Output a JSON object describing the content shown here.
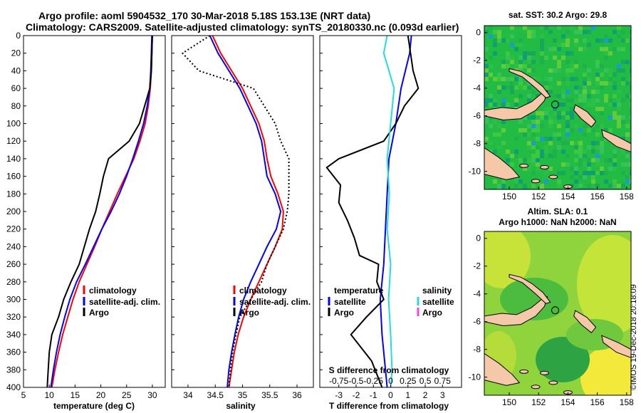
{
  "header": {
    "line1": "Argo profile: aoml 5904532_170 30-Mar-2018 5.18S 153.13E (NRT data)",
    "line2": "Climatology: CARS2009. Satellite-adjusted climatology: synTS_20180330.nc (0.093d earlier)"
  },
  "watermark": "©IMOS 19-Dec-2018 20:18:09",
  "colors": {
    "climatology": "#ff0000",
    "satellite": "#0000ff",
    "argo": "#000000",
    "sal_satellite": "#22dddd",
    "sal_argo": "#ff44cc",
    "land": "#f4c8a8"
  },
  "chart_data": [
    {
      "type": "line",
      "title": "",
      "xlabel": "temperature (deg C)",
      "ylabel": "",
      "xlim": [
        5,
        32.5
      ],
      "ylim": [
        400,
        0
      ],
      "xticks": [
        "5",
        "10",
        "15",
        "20",
        "25",
        "30"
      ],
      "yticks": [
        "0",
        "20",
        "40",
        "60",
        "80",
        "100",
        "120",
        "140",
        "160",
        "180",
        "200",
        "220",
        "240",
        "260",
        "280",
        "300",
        "320",
        "340",
        "360",
        "380",
        "400"
      ],
      "legend": [
        "climatology",
        "satellite-adj. clim.",
        "Argo"
      ],
      "series": [
        {
          "name": "climatology",
          "points": [
            [
              30.0,
              0
            ],
            [
              29.9,
              20
            ],
            [
              29.8,
              40
            ],
            [
              29.6,
              60
            ],
            [
              29.2,
              80
            ],
            [
              28.6,
              100
            ],
            [
              27.6,
              120
            ],
            [
              26.4,
              140
            ],
            [
              24.8,
              160
            ],
            [
              23.2,
              180
            ],
            [
              21.7,
              200
            ],
            [
              20.2,
              220
            ],
            [
              18.8,
              240
            ],
            [
              17.3,
              260
            ],
            [
              15.8,
              280
            ],
            [
              14.6,
              300
            ],
            [
              13.6,
              320
            ],
            [
              12.6,
              340
            ],
            [
              11.8,
              360
            ],
            [
              11.1,
              380
            ],
            [
              10.5,
              400
            ]
          ]
        },
        {
          "name": "satellite-adj. clim.",
          "points": [
            [
              29.9,
              0
            ],
            [
              29.8,
              20
            ],
            [
              29.7,
              40
            ],
            [
              29.5,
              60
            ],
            [
              29.0,
              80
            ],
            [
              28.3,
              100
            ],
            [
              27.3,
              120
            ],
            [
              26.2,
              140
            ],
            [
              25.0,
              160
            ],
            [
              23.6,
              180
            ],
            [
              22.0,
              200
            ],
            [
              20.2,
              220
            ],
            [
              18.6,
              240
            ],
            [
              17.0,
              260
            ],
            [
              15.3,
              280
            ],
            [
              14.0,
              300
            ],
            [
              13.0,
              320
            ],
            [
              12.1,
              340
            ],
            [
              11.4,
              360
            ],
            [
              10.8,
              380
            ],
            [
              10.3,
              400
            ]
          ]
        },
        {
          "name": "Argo",
          "points": [
            [
              30.0,
              0
            ],
            [
              29.9,
              20
            ],
            [
              29.8,
              40
            ],
            [
              29.5,
              60
            ],
            [
              28.5,
              80
            ],
            [
              27.5,
              100
            ],
            [
              25.5,
              120
            ],
            [
              21.5,
              140
            ],
            [
              20.5,
              160
            ],
            [
              19.8,
              180
            ],
            [
              19.0,
              200
            ],
            [
              17.8,
              220
            ],
            [
              16.8,
              240
            ],
            [
              15.8,
              260
            ],
            [
              14.2,
              280
            ],
            [
              12.8,
              300
            ],
            [
              11.8,
              320
            ],
            [
              10.5,
              340
            ],
            [
              10.0,
              360
            ],
            [
              9.8,
              380
            ],
            [
              9.6,
              400
            ]
          ]
        }
      ]
    },
    {
      "type": "line",
      "title": "",
      "xlabel": "salinity",
      "ylabel": "",
      "xlim": [
        33.7,
        36.3
      ],
      "ylim": [
        400,
        0
      ],
      "xticks": [
        "34",
        "34.5",
        "35",
        "35.5",
        "36"
      ],
      "legend": [
        "climatology",
        "satellite-adj. clim.",
        "Argo"
      ],
      "series": [
        {
          "name": "climatology",
          "points": [
            [
              34.45,
              0
            ],
            [
              34.6,
              20
            ],
            [
              34.8,
              40
            ],
            [
              35.0,
              60
            ],
            [
              35.15,
              80
            ],
            [
              35.3,
              100
            ],
            [
              35.4,
              120
            ],
            [
              35.45,
              140
            ],
            [
              35.52,
              160
            ],
            [
              35.65,
              180
            ],
            [
              35.75,
              200
            ],
            [
              35.73,
              220
            ],
            [
              35.6,
              240
            ],
            [
              35.45,
              260
            ],
            [
              35.3,
              280
            ],
            [
              35.15,
              300
            ],
            [
              35.02,
              320
            ],
            [
              34.92,
              340
            ],
            [
              34.85,
              360
            ],
            [
              34.8,
              380
            ],
            [
              34.75,
              400
            ]
          ]
        },
        {
          "name": "satellite-adj. clim.",
          "points": [
            [
              34.4,
              0
            ],
            [
              34.55,
              20
            ],
            [
              34.75,
              40
            ],
            [
              34.95,
              60
            ],
            [
              35.1,
              80
            ],
            [
              35.25,
              100
            ],
            [
              35.35,
              120
            ],
            [
              35.4,
              140
            ],
            [
              35.45,
              160
            ],
            [
              35.6,
              180
            ],
            [
              35.7,
              200
            ],
            [
              35.62,
              220
            ],
            [
              35.45,
              240
            ],
            [
              35.3,
              260
            ],
            [
              35.15,
              280
            ],
            [
              35.02,
              300
            ],
            [
              34.93,
              320
            ],
            [
              34.86,
              340
            ],
            [
              34.8,
              360
            ],
            [
              34.75,
              380
            ],
            [
              34.72,
              400
            ]
          ]
        },
        {
          "name": "Argo",
          "points": [
            [
              34.4,
              0
            ],
            [
              33.9,
              20
            ],
            [
              34.2,
              40
            ],
            [
              35.2,
              60
            ],
            [
              35.4,
              80
            ],
            [
              35.6,
              100
            ],
            [
              35.7,
              120
            ],
            [
              35.85,
              140
            ],
            [
              35.85,
              160
            ],
            [
              35.85,
              180
            ],
            [
              35.82,
              200
            ],
            [
              35.75,
              220
            ],
            [
              35.6,
              240
            ],
            [
              35.45,
              260
            ],
            [
              35.35,
              280
            ],
            [
              35.15,
              300
            ],
            [
              34.95,
              320
            ],
            [
              34.88,
              340
            ],
            [
              34.82,
              360
            ],
            [
              34.78,
              380
            ],
            [
              34.75,
              400
            ]
          ]
        }
      ]
    },
    {
      "type": "line",
      "title": "",
      "xlabel": "T difference from climatology",
      "x2label": "S difference from climatology",
      "xlim": [
        -4.1,
        4.1
      ],
      "ylim": [
        400,
        0
      ],
      "xticks": [
        "-3",
        "-2",
        "-1",
        "0",
        "1",
        "2",
        "3"
      ],
      "x2ticks": [
        "-0.75",
        "-0.5",
        "-0.25",
        "0",
        "0.25",
        "0.5",
        "0.75"
      ],
      "legend_temperature_title": "temperature",
      "legend_salinity_title": "salinity",
      "legend": [
        "satellite",
        "Argo"
      ],
      "series": [
        {
          "name": "temperature satellite",
          "points": [
            [
              1.2,
              0
            ],
            [
              1.1,
              20
            ],
            [
              0.6,
              60
            ],
            [
              0.3,
              100
            ],
            [
              -0.1,
              140
            ],
            [
              -0.2,
              180
            ],
            [
              -0.3,
              220
            ],
            [
              -0.4,
              260
            ],
            [
              -0.6,
              300
            ],
            [
              -0.5,
              340
            ],
            [
              -0.3,
              380
            ],
            [
              -0.2,
              400
            ]
          ]
        },
        {
          "name": "temperature Argo",
          "points": [
            [
              1.0,
              0
            ],
            [
              1.3,
              40
            ],
            [
              1.6,
              60
            ],
            [
              0.8,
              80
            ],
            [
              0.3,
              100
            ],
            [
              -0.4,
              120
            ],
            [
              -3.0,
              140
            ],
            [
              -3.7,
              150
            ],
            [
              -2.9,
              170
            ],
            [
              -3.0,
              190
            ],
            [
              -2.5,
              210
            ],
            [
              -2.1,
              230
            ],
            [
              -1.8,
              250
            ],
            [
              -0.7,
              260
            ],
            [
              -0.8,
              280
            ],
            [
              -0.4,
              300
            ],
            [
              -1.4,
              320
            ],
            [
              -2.3,
              340
            ],
            [
              -1.1,
              370
            ],
            [
              -0.5,
              400
            ]
          ]
        },
        {
          "name": "salinity satellite",
          "points": [
            [
              -0.05,
              0
            ],
            [
              -0.1,
              20
            ],
            [
              0.05,
              60
            ],
            [
              0.0,
              100
            ],
            [
              -0.05,
              140
            ],
            [
              -0.02,
              180
            ],
            [
              -0.05,
              220
            ],
            [
              0.0,
              260
            ],
            [
              -0.03,
              300
            ],
            [
              0.0,
              340
            ],
            [
              0.02,
              380
            ],
            [
              0.0,
              400
            ]
          ]
        },
        {
          "name": "salinity Argo",
          "points": []
        }
      ]
    },
    {
      "type": "heatmap",
      "title": "sat. SST: 30.2 Argo: 29.8",
      "xticks": [
        "150",
        "152",
        "154",
        "156",
        "158"
      ],
      "yticks": [
        "0",
        "-2",
        "-4",
        "-6",
        "-8",
        "-10"
      ],
      "xlim": [
        148.3,
        158.3
      ],
      "ylim": [
        -11.3,
        0.5
      ],
      "marker": [
        153.13,
        -5.18
      ]
    },
    {
      "type": "heatmap",
      "title": "Altim. SLA: 0.1",
      "subtitle": "Argo h1000: NaN h2000: NaN",
      "xticks": [
        "150",
        "152",
        "154",
        "156",
        "158"
      ],
      "yticks": [
        "0",
        "-2",
        "-4",
        "-6",
        "-8",
        "-10"
      ],
      "xlim": [
        148.3,
        158.3
      ],
      "ylim": [
        -11.3,
        0.5
      ],
      "marker": [
        153.13,
        -5.18
      ]
    }
  ]
}
